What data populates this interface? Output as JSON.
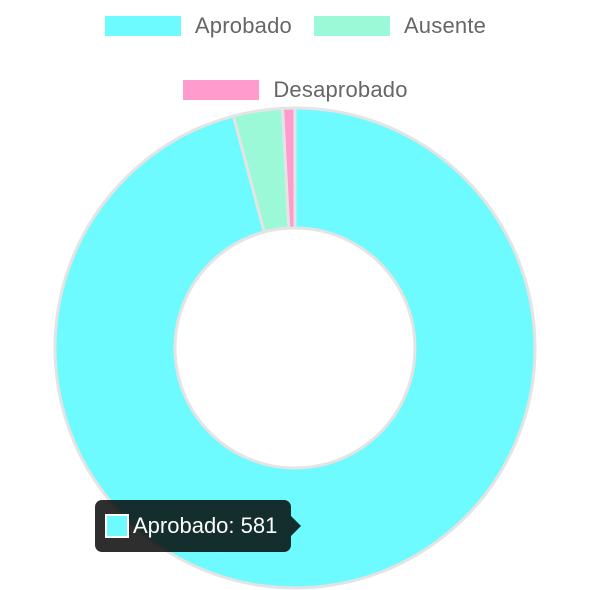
{
  "chart_data": {
    "type": "pie",
    "variant": "doughnut",
    "categories": [
      "Aprobado",
      "Ausente",
      "Desaprobado"
    ],
    "values": [
      581,
      20,
      5
    ],
    "colors": [
      "#6dfbff",
      "#9bf9d8",
      "#ff9bcd"
    ],
    "legend_position": "top",
    "title": ""
  },
  "legend": {
    "items": [
      {
        "label": "Aprobado",
        "color": "#6dfbff"
      },
      {
        "label": "Ausente",
        "color": "#9bf9d8"
      },
      {
        "label": "Desaprobado",
        "color": "#ff9bcd"
      }
    ]
  },
  "tooltip": {
    "label": "Aprobado",
    "value": "581",
    "text": "Aprobado: 581",
    "color": "#6dfbff"
  }
}
